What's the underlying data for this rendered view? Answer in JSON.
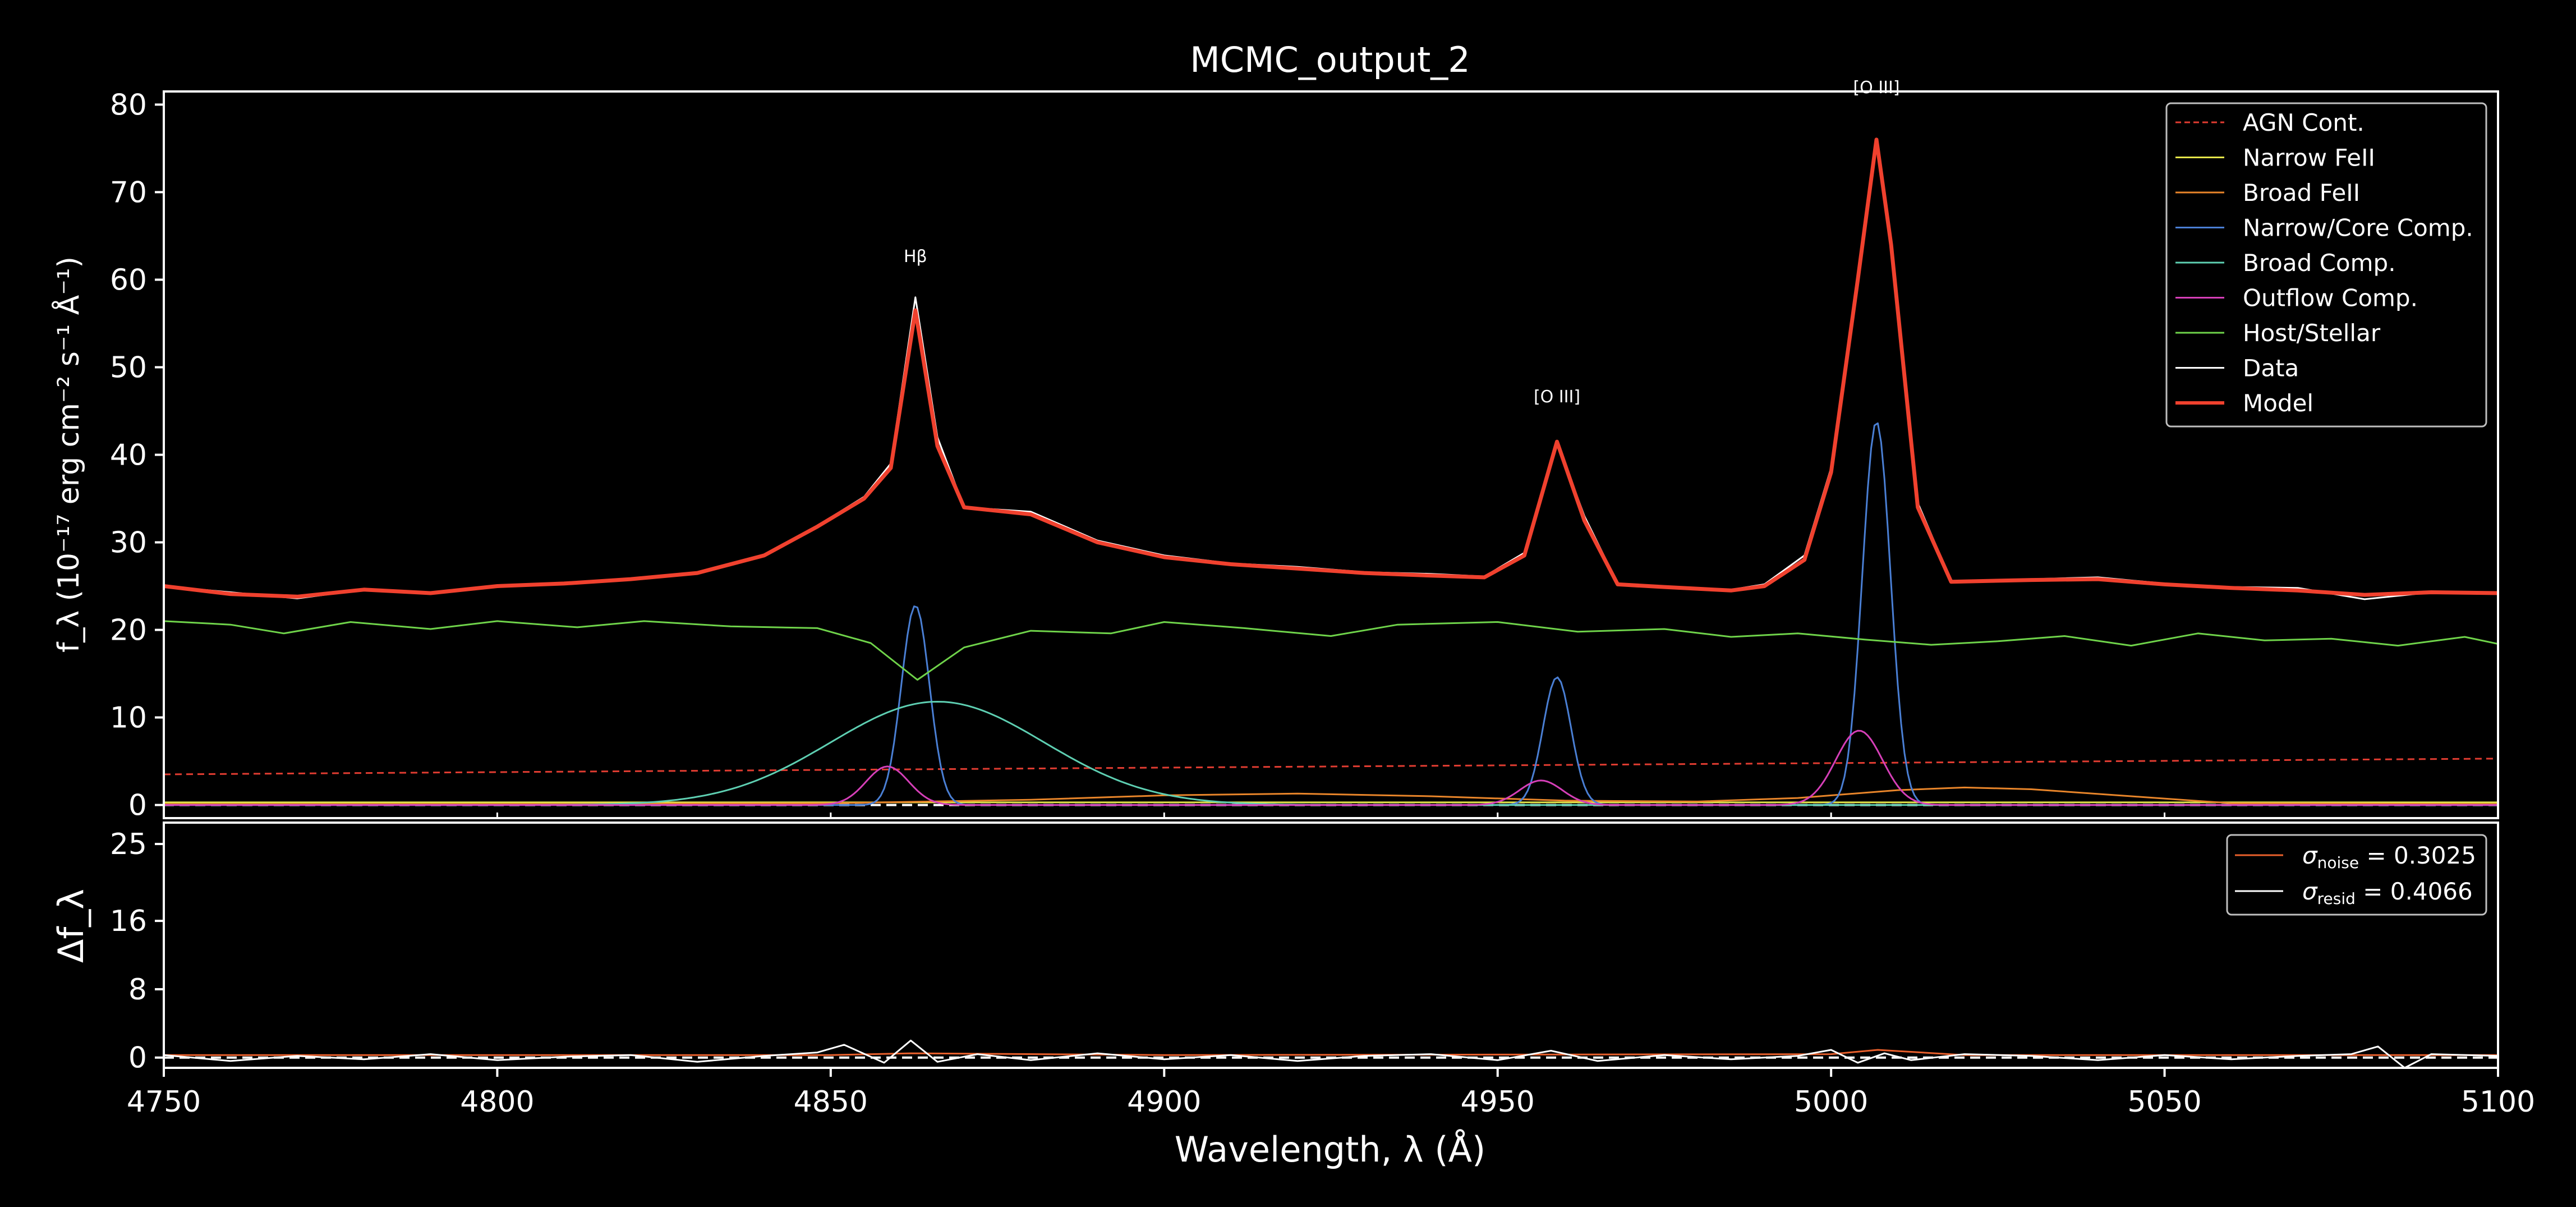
{
  "chart_data": {
    "type": "line",
    "title": "MCMC_output_2",
    "xlabel": "Wavelength, λ (Å)",
    "x_ticks": [
      "4750",
      "4800",
      "4850",
      "4900",
      "4950",
      "5000",
      "5050",
      "5100"
    ],
    "xlim": [
      4750,
      5100
    ],
    "top_panel": {
      "ylabel": "f_λ (10⁻¹⁷ erg cm⁻² s⁻¹ Å⁻¹)",
      "ylim": [
        -1.5,
        81.5
      ],
      "y_ticks": [
        "0",
        "10",
        "20",
        "30",
        "40",
        "50",
        "60",
        "70",
        "80"
      ],
      "line_labels": [
        {
          "text": "Hβ",
          "x": 4862.7,
          "y": 62
        },
        {
          "text": "[O III]",
          "x": 4958.9,
          "y": 46
        },
        {
          "text": "[O III]",
          "x": 5006.8,
          "y": 81.3
        }
      ],
      "legend": {
        "position": "top-right",
        "entries": [
          "AGN Cont.",
          "Narrow FeII",
          "Broad FeII",
          "Narrow/Core Comp.",
          "Broad Comp.",
          "Outflow Comp.",
          "Host/Stellar",
          "Data",
          "Model"
        ]
      },
      "series": [
        {
          "name": "AGN Cont.",
          "color": "#e03c31",
          "style": "dashed",
          "x": [
            4750,
            5100
          ],
          "y": [
            3.5,
            5.3
          ]
        },
        {
          "name": "Narrow FeII",
          "color": "#e5e54a",
          "style": "solid",
          "x": [
            4750,
            4800,
            4850,
            4900,
            4950,
            5000,
            5050,
            5100
          ],
          "y": [
            0.3,
            0.3,
            0.3,
            0.3,
            0.3,
            0.3,
            0.3,
            0.3
          ]
        },
        {
          "name": "Broad FeII",
          "color": "#e8852a",
          "style": "solid",
          "x": [
            4750,
            4800,
            4850,
            4880,
            4900,
            4920,
            4940,
            4960,
            4980,
            4995,
            5010,
            5020,
            5030,
            5045,
            5060,
            5100
          ],
          "y": [
            0.1,
            0.1,
            0.2,
            0.6,
            1.1,
            1.3,
            1.0,
            0.5,
            0.4,
            0.8,
            1.7,
            2.0,
            1.8,
            1.0,
            0.2,
            0.1
          ]
        },
        {
          "name": "Narrow/Core Comp.",
          "color": "#4a7fd4",
          "style": "solid",
          "peaks": [
            {
              "center": 4862.7,
              "amp": 22.8,
              "sigma": 2.1
            },
            {
              "center": 4958.9,
              "amp": 14.6,
              "sigma": 2.1
            },
            {
              "center": 5006.8,
              "amp": 43.8,
              "sigma": 2.1
            }
          ]
        },
        {
          "name": "Broad Comp.",
          "color": "#5ecfb2",
          "style": "solid",
          "peaks": [
            {
              "center": 4866,
              "amp": 11.8,
              "sigma": 16
            }
          ]
        },
        {
          "name": "Outflow Comp.",
          "color": "#d63fb8",
          "style": "solid",
          "peaks": [
            {
              "center": 4858.5,
              "amp": 4.4,
              "sigma": 3.2
            },
            {
              "center": 4956.5,
              "amp": 2.8,
              "sigma": 3.2
            },
            {
              "center": 5004.2,
              "amp": 8.5,
              "sigma": 3.5
            }
          ]
        },
        {
          "name": "Host/Stellar",
          "color": "#6fd34a",
          "style": "solid",
          "x": [
            4750,
            4760,
            4768,
            4778,
            4790,
            4800,
            4812,
            4822,
            4835,
            4848,
            4856,
            4863,
            4870,
            4880,
            4892,
            4900,
            4912,
            4925,
            4935,
            4950,
            4962,
            4975,
            4985,
            4995,
            5005,
            5015,
            5025,
            5035,
            5045,
            5055,
            5065,
            5075,
            5085,
            5095,
            5100
          ],
          "y": [
            21.0,
            20.6,
            19.6,
            20.9,
            20.1,
            21.0,
            20.3,
            21.0,
            20.4,
            20.2,
            18.5,
            14.3,
            18.0,
            19.9,
            19.6,
            20.9,
            20.2,
            19.3,
            20.6,
            20.9,
            19.8,
            20.1,
            19.2,
            19.6,
            18.9,
            18.3,
            18.7,
            19.3,
            18.2,
            19.6,
            18.8,
            19.0,
            18.2,
            19.2,
            18.4
          ]
        },
        {
          "name": "Data",
          "color": "#ffffff",
          "style": "solid",
          "x": [
            4750,
            4760,
            4770,
            4780,
            4790,
            4800,
            4810,
            4820,
            4830,
            4840,
            4848,
            4855,
            4859,
            4862.7,
            4866,
            4870,
            4880,
            4890,
            4900,
            4910,
            4920,
            4930,
            4940,
            4948,
            4954,
            4958.9,
            4963,
            4968,
            4975,
            4985,
            4990,
            4996,
            5000,
            5004,
            5006.8,
            5009,
            5013,
            5018,
            5030,
            5040,
            5050,
            5060,
            5070,
            5080,
            5090,
            5100
          ],
          "y": [
            25.0,
            24.3,
            23.6,
            24.6,
            24.1,
            25.1,
            25.2,
            25.9,
            26.4,
            28.6,
            31.9,
            35.2,
            39.0,
            58.0,
            42.0,
            34.0,
            33.5,
            30.2,
            28.5,
            27.6,
            27.2,
            26.6,
            26.4,
            26.1,
            28.8,
            41.5,
            33.0,
            25.3,
            25.0,
            24.6,
            25.2,
            28.5,
            38.5,
            60.0,
            76.0,
            64.0,
            34.5,
            25.6,
            25.8,
            26.0,
            25.3,
            24.9,
            24.8,
            23.5,
            24.3,
            24.2
          ]
        },
        {
          "name": "Model",
          "color": "#f0412e",
          "style": "solid",
          "bold": true,
          "x": [
            4750,
            4760,
            4770,
            4780,
            4790,
            4800,
            4810,
            4820,
            4830,
            4840,
            4848,
            4855,
            4859,
            4862.7,
            4866,
            4870,
            4880,
            4890,
            4900,
            4910,
            4920,
            4930,
            4940,
            4948,
            4954,
            4958.9,
            4963,
            4968,
            4975,
            4985,
            4990,
            4996,
            5000,
            5004,
            5006.8,
            5009,
            5013,
            5018,
            5030,
            5040,
            5050,
            5060,
            5070,
            5080,
            5090,
            5100
          ],
          "y": [
            25.0,
            24.1,
            23.8,
            24.6,
            24.2,
            25.0,
            25.3,
            25.8,
            26.5,
            28.5,
            31.8,
            35.0,
            38.5,
            56.5,
            41.0,
            34.0,
            33.2,
            30.0,
            28.3,
            27.5,
            27.0,
            26.5,
            26.2,
            26.0,
            28.5,
            41.5,
            32.5,
            25.2,
            24.9,
            24.5,
            25.0,
            28.0,
            38.0,
            60.0,
            76.0,
            64.0,
            34.0,
            25.5,
            25.7,
            25.8,
            25.2,
            24.8,
            24.5,
            24.0,
            24.3,
            24.2
          ]
        }
      ]
    },
    "residual_panel": {
      "ylabel": "Δf_λ",
      "ylim": [
        -1.2,
        27.5
      ],
      "y_ticks": [
        "0",
        "8",
        "16",
        "25"
      ],
      "legend": {
        "position": "top-right",
        "entries": [
          {
            "label": "σ_noise = 0.3025",
            "symbol": "σ",
            "sub": "noise",
            "value": "= 0.3025",
            "color": "#e8602c"
          },
          {
            "label": "σ_resid = 0.4066",
            "symbol": "σ",
            "sub": "resid",
            "value": "= 0.4066",
            "color": "#ffffff"
          }
        ]
      },
      "series": [
        {
          "name": "σ_noise",
          "color": "#e8602c",
          "style": "solid",
          "x": [
            4750,
            4850,
            4862,
            4900,
            5000,
            5007,
            5020,
            5100
          ],
          "y": [
            0.3,
            0.3,
            0.5,
            0.3,
            0.4,
            0.9,
            0.3,
            0.3
          ]
        },
        {
          "name": "σ_resid",
          "color": "#ffffff",
          "style": "solid",
          "x": [
            4750,
            4760,
            4770,
            4780,
            4790,
            4800,
            4810,
            4820,
            4830,
            4840,
            4848,
            4852,
            4858,
            4862,
            4866,
            4872,
            4880,
            4890,
            4900,
            4910,
            4920,
            4930,
            4940,
            4950,
            4958,
            4965,
            4975,
            4985,
            4995,
            5000,
            5004,
            5008,
            5012,
            5020,
            5030,
            5040,
            5050,
            5060,
            5070,
            5078,
            5082,
            5086,
            5090,
            5100
          ],
          "y": [
            0.3,
            -0.4,
            0.2,
            -0.2,
            0.4,
            -0.3,
            0.1,
            0.3,
            -0.5,
            0.2,
            0.6,
            1.5,
            -0.6,
            2.0,
            -0.5,
            0.4,
            -0.3,
            0.5,
            -0.2,
            0.3,
            -0.4,
            0.2,
            0.4,
            -0.3,
            0.8,
            -0.4,
            0.3,
            -0.2,
            0.2,
            0.9,
            -0.6,
            0.5,
            -0.3,
            0.4,
            0.2,
            -0.3,
            0.3,
            -0.2,
            0.2,
            0.4,
            1.3,
            -1.2,
            0.4,
            0.2
          ]
        }
      ]
    }
  }
}
